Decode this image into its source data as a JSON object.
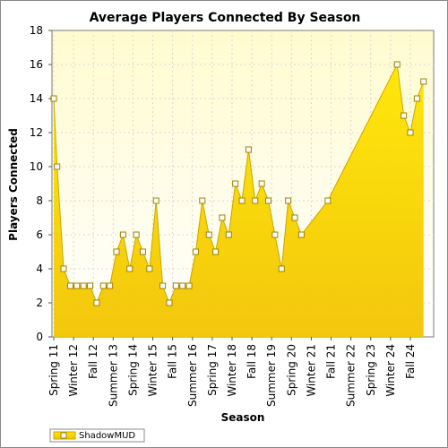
{
  "chart_data": {
    "type": "area",
    "title": "Average Players Connected By Season",
    "xlabel": "Season",
    "ylabel": "Players Connected",
    "ylim": [
      0,
      18
    ],
    "yticks": [
      0,
      2,
      4,
      6,
      8,
      10,
      12,
      14,
      16,
      18
    ],
    "grid": true,
    "legend_position": "bottom-left",
    "colors": {
      "fill_top": "#ffe600",
      "fill_bottom": "#f2c400",
      "line": "#c9a600",
      "marker_fill": "#ffffff",
      "marker_stroke": "#a08000",
      "plot_bg_top": "#fffbcf",
      "plot_bg_bottom": "#ffffff",
      "grid": "#d8d8d8"
    },
    "x_count": 57,
    "x_tick_labels": [
      {
        "i": 0,
        "label": "Spring 11"
      },
      {
        "i": 6,
        "label": "Winter 12"
      },
      {
        "i": 12,
        "label": "Fall 12"
      },
      {
        "i": 18,
        "label": "Summer 13"
      },
      {
        "i": 24,
        "label": "Spring 14"
      },
      {
        "i": 30,
        "label": "Winter 15"
      },
      {
        "i": 36,
        "label": "Fall 15"
      },
      {
        "i": 42,
        "label": "Summer 16"
      },
      {
        "i": 48,
        "label": "Spring 17"
      },
      {
        "i": 54,
        "label": "Winter 18"
      },
      {
        "i": 60,
        "label": "Fall 18"
      },
      {
        "i": 66,
        "label": "Summer 19"
      },
      {
        "i": 72,
        "label": "Spring 20"
      },
      {
        "i": 78,
        "label": "Winter 21"
      },
      {
        "i": 84,
        "label": "Fall 21"
      },
      {
        "i": 90,
        "label": "Summer 22"
      },
      {
        "i": 96,
        "label": "Spring 23"
      },
      {
        "i": 102,
        "label": "Winter 24"
      },
      {
        "i": 108,
        "label": "Fall 24"
      }
    ],
    "series": [
      {
        "name": "ShadowMUD",
        "points": [
          {
            "i": 0,
            "y": 14
          },
          {
            "i": 1,
            "y": 10
          },
          {
            "i": 3,
            "y": 4
          },
          {
            "i": 5,
            "y": 3
          },
          {
            "i": 7,
            "y": 3
          },
          {
            "i": 9,
            "y": 3
          },
          {
            "i": 11,
            "y": 3
          },
          {
            "i": 13,
            "y": 2
          },
          {
            "i": 15,
            "y": 3
          },
          {
            "i": 17,
            "y": 3
          },
          {
            "i": 19,
            "y": 5
          },
          {
            "i": 21,
            "y": 6
          },
          {
            "i": 23,
            "y": 4
          },
          {
            "i": 25,
            "y": 6
          },
          {
            "i": 27,
            "y": 5
          },
          {
            "i": 29,
            "y": 4
          },
          {
            "i": 31,
            "y": 8
          },
          {
            "i": 33,
            "y": 3
          },
          {
            "i": 35,
            "y": 2
          },
          {
            "i": 37,
            "y": 3
          },
          {
            "i": 39,
            "y": 3
          },
          {
            "i": 41,
            "y": 3
          },
          {
            "i": 43,
            "y": 5
          },
          {
            "i": 45,
            "y": 8
          },
          {
            "i": 47,
            "y": 6
          },
          {
            "i": 49,
            "y": 5
          },
          {
            "i": 51,
            "y": 7
          },
          {
            "i": 53,
            "y": 6
          },
          {
            "i": 55,
            "y": 9
          },
          {
            "i": 57,
            "y": 8
          },
          {
            "i": 59,
            "y": 11
          },
          {
            "i": 61,
            "y": 8
          },
          {
            "i": 63,
            "y": 9
          },
          {
            "i": 65,
            "y": 8
          },
          {
            "i": 67,
            "y": 6
          },
          {
            "i": 69,
            "y": 4
          },
          {
            "i": 71,
            "y": 8
          },
          {
            "i": 73,
            "y": 7
          },
          {
            "i": 75,
            "y": 6
          },
          {
            "i": 83,
            "y": 8
          },
          {
            "i": 104,
            "y": 16
          },
          {
            "i": 106,
            "y": 13
          },
          {
            "i": 108,
            "y": 12
          },
          {
            "i": 110,
            "y": 14
          },
          {
            "i": 112,
            "y": 15
          }
        ]
      }
    ]
  }
}
